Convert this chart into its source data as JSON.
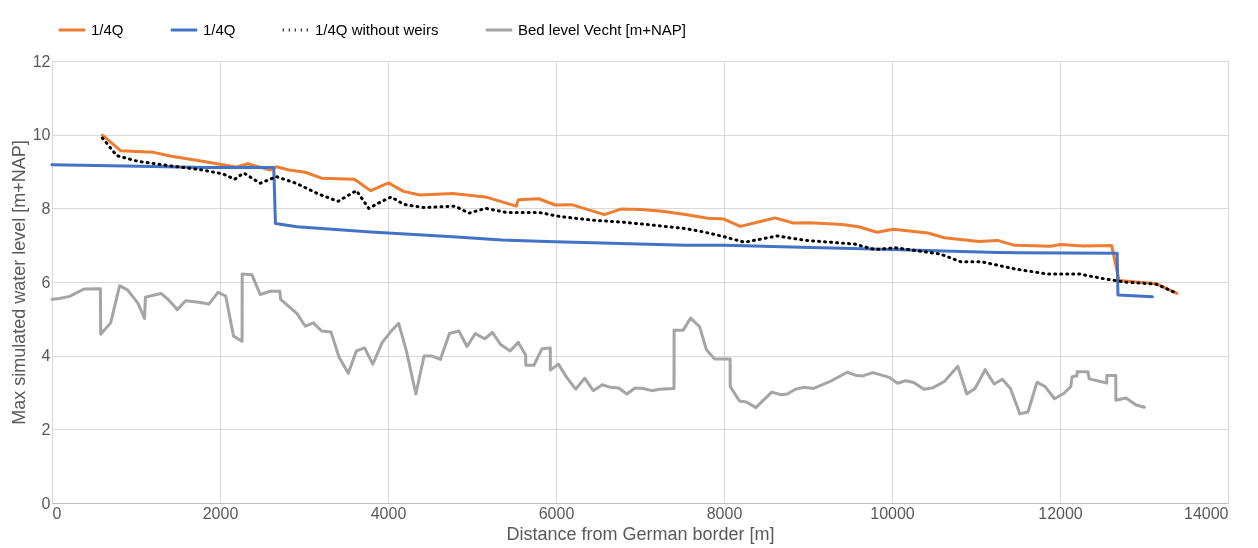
{
  "chart_data": {
    "type": "line",
    "xlabel": "Distance from German border [m]",
    "ylabel": "Max simulated water level [m+NAP]",
    "xlim": [
      0,
      14000
    ],
    "xticks": [
      0,
      2000,
      4000,
      6000,
      8000,
      10000,
      12000,
      14000
    ],
    "ylim": [
      0,
      12
    ],
    "yticks": [
      0,
      2,
      4,
      6,
      8,
      10,
      12
    ],
    "grid": true,
    "legend": "top",
    "line_style": "solid",
    "marker": "none",
    "series": [
      {
        "name": "1/4Q",
        "color": "#ed7d31",
        "x": [
          600,
          820,
          1210,
          1405,
          1844,
          2185,
          2332,
          2600,
          2673,
          2820,
          3015,
          3210,
          3600,
          3795,
          4005,
          4185,
          4380,
          4771,
          5161,
          5527,
          5551,
          5795,
          5990,
          6185,
          6576,
          6771,
          7015,
          7268,
          7541,
          7806,
          8000,
          8194,
          8607,
          8826,
          9020,
          9409,
          9603,
          9822,
          10016,
          10429,
          10623,
          11036,
          11255,
          11449,
          11886,
          12008,
          12275,
          12615,
          12703,
          13150,
          13392
        ],
        "values": [
          9.99,
          9.56,
          9.52,
          9.42,
          9.26,
          9.12,
          9.21,
          9.04,
          9.13,
          9.04,
          8.98,
          8.82,
          8.79,
          8.48,
          8.69,
          8.46,
          8.36,
          8.4,
          8.31,
          8.06,
          8.23,
          8.26,
          8.09,
          8.1,
          7.83,
          7.98,
          7.97,
          7.92,
          7.83,
          7.73,
          7.71,
          7.51,
          7.74,
          7.6,
          7.61,
          7.56,
          7.5,
          7.35,
          7.43,
          7.33,
          7.2,
          7.1,
          7.13,
          7.0,
          6.97,
          7.02,
          6.98,
          6.99,
          6.04,
          5.95,
          5.69
        ]
      },
      {
        "name": "1/4Q",
        "color": "#4472c4",
        "x": [
          0,
          868,
          1844,
          2640,
          2660,
          2917,
          3795,
          4771,
          5356,
          5990,
          7541,
          8000,
          9992,
          11255,
          12680,
          12690,
          13101
        ],
        "values": [
          9.18,
          9.15,
          9.11,
          9.11,
          7.59,
          7.5,
          7.36,
          7.23,
          7.14,
          7.09,
          7.0,
          7.0,
          6.88,
          6.8,
          6.78,
          5.65,
          5.6
        ]
      },
      {
        "name": "1/4Q without weirs",
        "color": "#000000",
        "line_style": "dotted",
        "x": [
          600,
          771,
          1015,
          1356,
          1795,
          2039,
          2176,
          2283,
          2478,
          2673,
          2917,
          3161,
          3405,
          3624,
          3771,
          3893,
          4039,
          4185,
          4429,
          4795,
          4966,
          5161,
          5405,
          5795,
          6039,
          6429,
          6819,
          7210,
          7541,
          7757,
          8000,
          8243,
          8632,
          8972,
          9555,
          9797,
          10040,
          10575,
          10818,
          11061,
          11449,
          11838,
          12226,
          12494,
          12761,
          13150,
          13392
        ],
        "values": [
          9.91,
          9.43,
          9.28,
          9.17,
          9.04,
          8.93,
          8.79,
          8.96,
          8.68,
          8.86,
          8.67,
          8.4,
          8.19,
          8.48,
          8.0,
          8.15,
          8.31,
          8.11,
          8.02,
          8.06,
          7.87,
          8.0,
          7.89,
          7.89,
          7.78,
          7.68,
          7.62,
          7.53,
          7.45,
          7.36,
          7.23,
          7.08,
          7.25,
          7.13,
          7.03,
          6.88,
          6.93,
          6.76,
          6.55,
          6.55,
          6.36,
          6.22,
          6.22,
          6.1,
          6.0,
          5.94,
          5.69
        ]
      },
      {
        "name": "Bed level Vecht [m+NAP]",
        "color": "#a5a5a5",
        "x": [
          0,
          88,
          210,
          380,
          576,
          580,
          698,
          805,
          902,
          1024,
          1102,
          1112,
          1298,
          1380,
          1493,
          1590,
          1746,
          1868,
          1976,
          2068,
          2161,
          2263,
          2264,
          2380,
          2478,
          2600,
          2712,
          2722,
          2917,
          3015,
          3112,
          3210,
          3322,
          3415,
          3527,
          3624,
          3722,
          3819,
          3932,
          4029,
          4127,
          4224,
          4332,
          4429,
          4527,
          4624,
          4732,
          4844,
          4941,
          5039,
          5151,
          5244,
          5341,
          5454,
          5551,
          5639,
          5640,
          5737,
          5834,
          5932,
          5933,
          6029,
          6127,
          6234,
          6341,
          6444,
          6551,
          6649,
          6746,
          6844,
          6941,
          7039,
          7137,
          7234,
          7405,
          7406,
          7514,
          7602,
          7709,
          7791,
          7888,
          8073,
          8074,
          8185,
          8267,
          8379,
          8568,
          8680,
          8753,
          8850,
          8947,
          9069,
          9263,
          9467,
          9579,
          9652,
          9773,
          9968,
          10065,
          10162,
          10259,
          10380,
          10478,
          10623,
          10784,
          10890,
          10988,
          11109,
          11216,
          11313,
          11410,
          11522,
          11619,
          11726,
          11823,
          11935,
          12047,
          12129,
          12144,
          12202,
          12203,
          12333,
          12348,
          12557,
          12558,
          12664,
          12665,
          12786,
          12907,
          13004
        ],
        "values": [
          5.53,
          5.55,
          5.61,
          5.81,
          5.82,
          4.58,
          4.89,
          5.9,
          5.78,
          5.42,
          5.01,
          5.59,
          5.69,
          5.53,
          5.25,
          5.49,
          5.45,
          5.4,
          5.72,
          5.62,
          4.53,
          4.39,
          6.22,
          6.2,
          5.66,
          5.75,
          5.75,
          5.53,
          5.14,
          4.8,
          4.89,
          4.67,
          4.64,
          3.97,
          3.52,
          4.13,
          4.21,
          3.77,
          4.36,
          4.64,
          4.88,
          4.08,
          2.96,
          3.99,
          3.99,
          3.9,
          4.6,
          4.67,
          4.25,
          4.6,
          4.46,
          4.63,
          4.3,
          4.13,
          4.36,
          4.02,
          3.74,
          3.74,
          4.19,
          4.21,
          3.61,
          3.77,
          3.41,
          3.09,
          3.39,
          3.05,
          3.21,
          3.14,
          3.12,
          2.96,
          3.12,
          3.11,
          3.05,
          3.09,
          3.11,
          4.69,
          4.69,
          5.02,
          4.79,
          4.16,
          3.91,
          3.91,
          3.16,
          2.77,
          2.74,
          2.59,
          3.01,
          2.94,
          2.96,
          3.09,
          3.14,
          3.11,
          3.3,
          3.55,
          3.46,
          3.45,
          3.54,
          3.41,
          3.25,
          3.32,
          3.27,
          3.09,
          3.12,
          3.3,
          3.71,
          2.96,
          3.11,
          3.62,
          3.23,
          3.36,
          3.11,
          2.42,
          2.47,
          3.28,
          3.16,
          2.83,
          2.98,
          3.16,
          3.43,
          3.45,
          3.56,
          3.56,
          3.37,
          3.26,
          3.46,
          3.46,
          2.79,
          2.85,
          2.66,
          2.6
        ]
      }
    ]
  }
}
